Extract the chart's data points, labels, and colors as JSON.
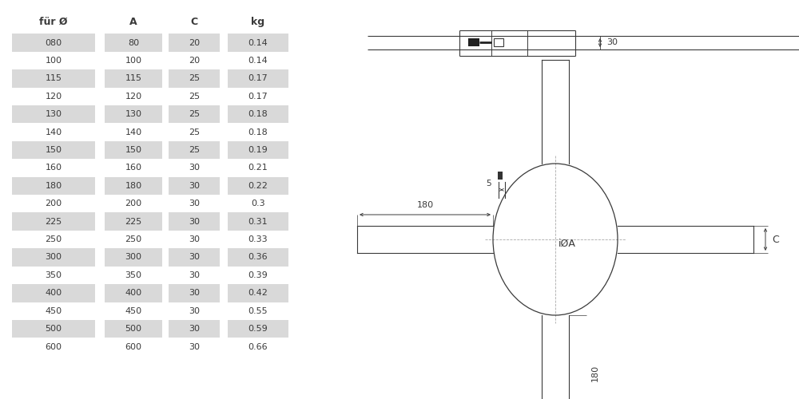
{
  "table_headers": [
    "für Ø",
    "A",
    "C",
    "kg"
  ],
  "table_rows": [
    [
      "080",
      "80",
      "20",
      "0.14"
    ],
    [
      "100",
      "100",
      "20",
      "0.14"
    ],
    [
      "115",
      "115",
      "25",
      "0.17"
    ],
    [
      "120",
      "120",
      "25",
      "0.17"
    ],
    [
      "130",
      "130",
      "25",
      "0.18"
    ],
    [
      "140",
      "140",
      "25",
      "0.18"
    ],
    [
      "150",
      "150",
      "25",
      "0.19"
    ],
    [
      "160",
      "160",
      "30",
      "0.21"
    ],
    [
      "180",
      "180",
      "30",
      "0.22"
    ],
    [
      "200",
      "200",
      "30",
      "0.3"
    ],
    [
      "225",
      "225",
      "30",
      "0.31"
    ],
    [
      "250",
      "250",
      "30",
      "0.33"
    ],
    [
      "300",
      "300",
      "30",
      "0.36"
    ],
    [
      "350",
      "350",
      "30",
      "0.39"
    ],
    [
      "400",
      "400",
      "30",
      "0.42"
    ],
    [
      "450",
      "450",
      "30",
      "0.55"
    ],
    [
      "500",
      "500",
      "30",
      "0.59"
    ],
    [
      "600",
      "600",
      "30",
      "0.66"
    ]
  ],
  "shaded_rows": [
    0,
    2,
    4,
    6,
    8,
    10,
    12,
    14,
    16
  ],
  "row_bg_color": "#d9d9d9",
  "text_color": "#3a3a3a",
  "line_color": "#3a3a3a",
  "bg_color": "#ffffff",
  "font_size": 8.0,
  "header_font_size": 9.0
}
